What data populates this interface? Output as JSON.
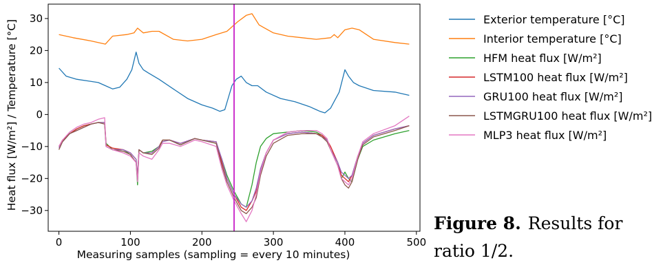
{
  "chart_data": {
    "type": "line",
    "xlabel": "Measuring samples (sampling = every 10 minutes)",
    "ylabel": "Heat flux [W/m²] / Temperature [°C]",
    "xlim": [
      -15,
      505
    ],
    "ylim": [
      -36.5,
      34.5
    ],
    "xticks": [
      0,
      100,
      200,
      300,
      400,
      500
    ],
    "yticks": [
      -30,
      -20,
      -10,
      0,
      10,
      20,
      30
    ],
    "vline": {
      "x": 245,
      "color": "#cc33cc"
    },
    "grid": false,
    "legend_position": "outside-right",
    "series": [
      {
        "name": "Exterior temperature [°C]",
        "color": "#1f77b4",
        "x": [
          0,
          10,
          25,
          40,
          55,
          65,
          75,
          85,
          95,
          102,
          108,
          112,
          118,
          125,
          140,
          160,
          180,
          200,
          215,
          225,
          232,
          238,
          242,
          248,
          255,
          262,
          270,
          278,
          290,
          310,
          330,
          350,
          360,
          365,
          372,
          380,
          392,
          400,
          405,
          412,
          420,
          440,
          470,
          490
        ],
        "y": [
          14.5,
          12,
          11,
          10.5,
          10,
          9,
          8,
          8.5,
          11,
          14,
          19.5,
          16,
          14,
          13,
          11,
          8,
          5,
          3,
          2,
          1,
          1.5,
          6,
          9,
          11,
          12,
          10,
          9,
          9,
          7,
          5,
          4,
          2.5,
          1.5,
          1,
          0.5,
          2,
          7,
          14,
          12,
          10,
          9,
          7.5,
          7,
          6
        ]
      },
      {
        "name": "Interior temperature [°C]",
        "color": "#ff7f0e",
        "x": [
          0,
          20,
          45,
          65,
          75,
          95,
          105,
          110,
          118,
          130,
          140,
          160,
          180,
          200,
          220,
          235,
          250,
          262,
          270,
          280,
          300,
          320,
          340,
          360,
          380,
          385,
          390,
          400,
          410,
          420,
          440,
          470,
          490
        ],
        "y": [
          25,
          24,
          23,
          22,
          24.5,
          25,
          25.5,
          27,
          25.5,
          26,
          26,
          23.5,
          23,
          23.5,
          25,
          26,
          29,
          31,
          31.5,
          28,
          25.5,
          24.5,
          24,
          23.5,
          24,
          25,
          24,
          26.5,
          27,
          26.5,
          23.5,
          22.5,
          22
        ]
      },
      {
        "name": "HFM heat flux [W/m²]",
        "color": "#2ca02c",
        "x": [
          0,
          5,
          15,
          25,
          35,
          45,
          55,
          64,
          66,
          75,
          90,
          100,
          108,
          110,
          112,
          118,
          130,
          140,
          145,
          155,
          170,
          190,
          200,
          220,
          228,
          235,
          245,
          255,
          262,
          270,
          276,
          282,
          290,
          300,
          320,
          340,
          360,
          368,
          375,
          380,
          390,
          395,
          400,
          405,
          410,
          418,
          425,
          440,
          470,
          490
        ],
        "y": [
          -10,
          -8.5,
          -6,
          -4.5,
          -3.5,
          -3,
          -2.5,
          -2.5,
          -9,
          -11,
          -11,
          -12.5,
          -15,
          -22,
          -11,
          -12,
          -11.5,
          -10,
          -8,
          -8,
          -9.5,
          -7.5,
          -8,
          -9,
          -14,
          -19,
          -24,
          -28,
          -29,
          -22,
          -15,
          -10,
          -7.5,
          -6,
          -5.5,
          -5,
          -5.5,
          -6.5,
          -8,
          -11,
          -15,
          -20,
          -18,
          -20,
          -21,
          -14,
          -10,
          -8,
          -6,
          -5
        ]
      },
      {
        "name": "LSTM100 heat flux [W/m²]",
        "color": "#d62728",
        "x": [
          0,
          5,
          15,
          25,
          35,
          45,
          55,
          64,
          66,
          75,
          90,
          100,
          108,
          110,
          112,
          118,
          130,
          140,
          145,
          155,
          170,
          190,
          200,
          220,
          228,
          235,
          245,
          255,
          262,
          270,
          276,
          282,
          290,
          300,
          320,
          340,
          360,
          368,
          375,
          380,
          390,
          395,
          400,
          405,
          410,
          418,
          425,
          440,
          470,
          490
        ],
        "y": [
          -10,
          -8,
          -6,
          -4.5,
          -3.5,
          -3,
          -2.5,
          -2.5,
          -9.5,
          -10.5,
          -11,
          -12,
          -14,
          -20,
          -11,
          -12,
          -12,
          -10,
          -8,
          -8,
          -9,
          -7.5,
          -8,
          -8.5,
          -15,
          -20,
          -25,
          -29,
          -30,
          -27,
          -24,
          -17,
          -12,
          -8,
          -6,
          -5.5,
          -6,
          -6.5,
          -8,
          -10,
          -15,
          -19,
          -20,
          -21,
          -19,
          -13,
          -9,
          -6.5,
          -4.5,
          -3.5
        ]
      },
      {
        "name": "GRU100 heat flux [W/m²]",
        "color": "#9467bd",
        "x": [
          0,
          5,
          15,
          25,
          35,
          45,
          55,
          64,
          66,
          75,
          90,
          100,
          108,
          110,
          112,
          118,
          130,
          140,
          145,
          155,
          170,
          190,
          200,
          220,
          228,
          235,
          245,
          255,
          262,
          270,
          276,
          282,
          290,
          300,
          320,
          340,
          360,
          368,
          375,
          380,
          390,
          395,
          400,
          405,
          410,
          418,
          425,
          440,
          470,
          490
        ],
        "y": [
          -10.5,
          -8.5,
          -6,
          -5,
          -4,
          -3,
          -2.5,
          -2.5,
          -10,
          -11,
          -11,
          -12,
          -14,
          -19,
          -11,
          -12,
          -12,
          -10,
          -8.5,
          -8,
          -9,
          -7.5,
          -8,
          -8.5,
          -14,
          -20,
          -25,
          -28,
          -29,
          -27,
          -23,
          -17,
          -12,
          -8,
          -6,
          -5.5,
          -6,
          -7,
          -8,
          -11,
          -15,
          -18,
          -19,
          -20,
          -19,
          -13,
          -9,
          -6.5,
          -4.5,
          -3.5
        ]
      },
      {
        "name": "LSTMGRU100 heat flux [W/m²]",
        "color": "#8c564b",
        "x": [
          0,
          5,
          15,
          25,
          35,
          45,
          55,
          64,
          66,
          75,
          90,
          100,
          108,
          110,
          112,
          118,
          130,
          140,
          145,
          155,
          170,
          190,
          200,
          220,
          228,
          235,
          245,
          255,
          262,
          270,
          276,
          282,
          290,
          300,
          320,
          340,
          360,
          368,
          375,
          380,
          390,
          395,
          400,
          405,
          410,
          418,
          425,
          440,
          470,
          490
        ],
        "y": [
          -11,
          -8.5,
          -6,
          -5,
          -4,
          -3,
          -2.5,
          -3,
          -10,
          -11,
          -11.5,
          -12.5,
          -15,
          -20,
          -11,
          -12,
          -12.5,
          -10.5,
          -8,
          -8,
          -9.5,
          -7.5,
          -8,
          -9,
          -16,
          -21,
          -26,
          -30,
          -31,
          -29,
          -26,
          -19,
          -13,
          -9,
          -6.5,
          -6,
          -6,
          -7,
          -8.5,
          -11,
          -16,
          -20,
          -22,
          -23,
          -21,
          -14,
          -9.5,
          -7,
          -5,
          -3.5
        ]
      },
      {
        "name": "MLP3 heat flux [W/m²]",
        "color": "#e377c2",
        "x": [
          0,
          5,
          15,
          25,
          35,
          45,
          55,
          64,
          66,
          75,
          90,
          100,
          108,
          110,
          112,
          118,
          130,
          140,
          145,
          155,
          170,
          190,
          200,
          220,
          228,
          235,
          245,
          255,
          262,
          270,
          276,
          282,
          290,
          300,
          320,
          340,
          360,
          368,
          375,
          380,
          390,
          395,
          400,
          405,
          410,
          418,
          425,
          440,
          470,
          490
        ],
        "y": [
          -10,
          -8,
          -5.5,
          -4,
          -3,
          -2.5,
          -1.5,
          -1,
          -10,
          -11,
          -12,
          -13,
          -15,
          -21,
          -12,
          -13,
          -14,
          -11,
          -9,
          -9,
          -10,
          -8,
          -8.5,
          -10,
          -17,
          -22,
          -27,
          -31,
          -33.5,
          -30,
          -25,
          -18,
          -12,
          -8,
          -5.5,
          -5,
          -5,
          -6,
          -7.5,
          -11,
          -16,
          -20,
          -21,
          -22,
          -20,
          -13,
          -8.5,
          -6,
          -3.5,
          -0.5
        ]
      }
    ]
  },
  "caption": {
    "label": "Figure 8.",
    "text_line1": "Results for",
    "text_line2": "ratio 1/2."
  }
}
